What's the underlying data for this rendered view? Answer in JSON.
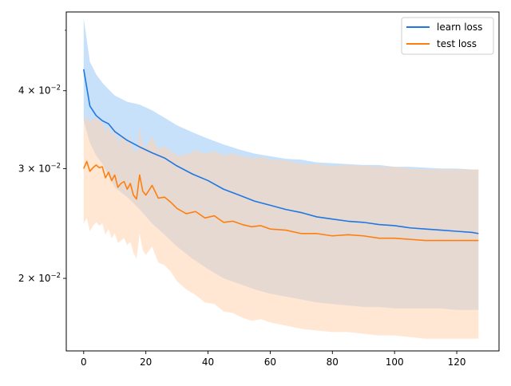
{
  "chart_data": {
    "type": "line",
    "title": "",
    "xlabel": "",
    "ylabel": "",
    "yscale": "log",
    "xlim": [
      -5.6,
      133.6
    ],
    "ylim": [
      0.0153,
      0.0535
    ],
    "xticks": [
      0,
      20,
      40,
      60,
      80,
      100,
      120
    ],
    "xtick_labels": [
      "0",
      "20",
      "40",
      "60",
      "80",
      "100",
      "120"
    ],
    "yticks": [
      0.02,
      0.03,
      0.04
    ],
    "ytick_labels": [
      {
        "base": "2 × 10",
        "exp": "−2"
      },
      {
        "base": "3 × 10",
        "exp": "−2"
      },
      {
        "base": "4 × 10",
        "exp": "−2"
      }
    ],
    "minor_yticks": [
      0.05
    ],
    "grid": false,
    "legend": {
      "position": "top-right",
      "entries": [
        {
          "label": "learn loss",
          "color": "#1f77e4"
        },
        {
          "label": "test loss",
          "color": "#ff7f0e"
        }
      ]
    },
    "series": [
      {
        "name": "learn loss",
        "color": "#1f77e4",
        "band_color": "#99c8f8",
        "x": [
          0,
          2,
          4,
          6,
          8,
          10,
          14,
          18,
          22,
          26,
          30,
          35,
          40,
          45,
          50,
          55,
          60,
          65,
          70,
          75,
          80,
          85,
          90,
          95,
          100,
          105,
          110,
          115,
          120,
          125,
          127
        ],
        "mean": [
          0.0433,
          0.0378,
          0.0365,
          0.0358,
          0.0354,
          0.0344,
          0.0333,
          0.0325,
          0.0318,
          0.0312,
          0.0303,
          0.0294,
          0.0287,
          0.0278,
          0.0272,
          0.0266,
          0.0262,
          0.0258,
          0.0255,
          0.0251,
          0.0249,
          0.0247,
          0.0246,
          0.0244,
          0.0243,
          0.0241,
          0.024,
          0.0239,
          0.0238,
          0.0237,
          0.0236
        ],
        "upper": [
          0.0523,
          0.0445,
          0.0425,
          0.0412,
          0.0402,
          0.0393,
          0.0384,
          0.038,
          0.0372,
          0.0362,
          0.0352,
          0.0343,
          0.0335,
          0.0328,
          0.0322,
          0.0317,
          0.0314,
          0.0311,
          0.031,
          0.0307,
          0.0306,
          0.0305,
          0.0304,
          0.0304,
          0.0302,
          0.0302,
          0.0301,
          0.03,
          0.03,
          0.0299,
          0.0299
        ],
        "lower": [
          0.0358,
          0.033,
          0.0315,
          0.0305,
          0.0292,
          0.028,
          0.027,
          0.0258,
          0.0245,
          0.0235,
          0.0225,
          0.0215,
          0.0207,
          0.02,
          0.0196,
          0.0192,
          0.0189,
          0.0187,
          0.0185,
          0.0183,
          0.0182,
          0.0181,
          0.018,
          0.018,
          0.0179,
          0.0179,
          0.0179,
          0.0179,
          0.0178,
          0.0178,
          0.0178
        ]
      },
      {
        "name": "test loss",
        "color": "#ff7f0e",
        "band_color": "#ffd3ae",
        "x": [
          0,
          1,
          2,
          3,
          4,
          5,
          6,
          7,
          8,
          9,
          10,
          11,
          12,
          13,
          14,
          15,
          16,
          17,
          18,
          19,
          20,
          22,
          24,
          26,
          28,
          30,
          33,
          36,
          39,
          42,
          45,
          48,
          51,
          54,
          57,
          60,
          65,
          70,
          75,
          80,
          85,
          90,
          95,
          100,
          105,
          110,
          115,
          120,
          125,
          127
        ],
        "mean": [
          0.03,
          0.0308,
          0.0297,
          0.0301,
          0.0304,
          0.0301,
          0.0302,
          0.029,
          0.0296,
          0.0287,
          0.0293,
          0.028,
          0.0284,
          0.0286,
          0.0278,
          0.0284,
          0.0272,
          0.0268,
          0.0293,
          0.0276,
          0.0272,
          0.0282,
          0.0269,
          0.027,
          0.0265,
          0.0259,
          0.0254,
          0.0256,
          0.025,
          0.0252,
          0.0246,
          0.0247,
          0.0244,
          0.0242,
          0.0243,
          0.024,
          0.0239,
          0.0236,
          0.0236,
          0.0234,
          0.0235,
          0.0234,
          0.0232,
          0.0232,
          0.0231,
          0.023,
          0.023,
          0.023,
          0.023,
          0.023
        ],
        "upper": [
          0.0355,
          0.0365,
          0.0357,
          0.0359,
          0.0363,
          0.0358,
          0.0357,
          0.0344,
          0.0352,
          0.0338,
          0.035,
          0.033,
          0.0338,
          0.034,
          0.0328,
          0.0339,
          0.0321,
          0.0318,
          0.035,
          0.0328,
          0.0324,
          0.0338,
          0.0322,
          0.0326,
          0.032,
          0.0315,
          0.0316,
          0.0321,
          0.0317,
          0.032,
          0.0315,
          0.0317,
          0.0314,
          0.0312,
          0.0313,
          0.031,
          0.0309,
          0.0305,
          0.0305,
          0.0303,
          0.0304,
          0.0303,
          0.0302,
          0.0302,
          0.03,
          0.0299,
          0.0299,
          0.0299,
          0.0299,
          0.0299
        ],
        "lower": [
          0.0245,
          0.025,
          0.0238,
          0.0243,
          0.0246,
          0.0243,
          0.0245,
          0.0235,
          0.024,
          0.0232,
          0.0236,
          0.0228,
          0.023,
          0.0232,
          0.0226,
          0.0229,
          0.022,
          0.0215,
          0.0236,
          0.0222,
          0.0218,
          0.0225,
          0.0212,
          0.021,
          0.0205,
          0.0198,
          0.0192,
          0.0188,
          0.0183,
          0.0182,
          0.0177,
          0.0176,
          0.0173,
          0.0171,
          0.0172,
          0.017,
          0.0168,
          0.0166,
          0.0165,
          0.0164,
          0.0164,
          0.0163,
          0.0162,
          0.0162,
          0.0161,
          0.016,
          0.016,
          0.016,
          0.016,
          0.016
        ]
      }
    ]
  }
}
